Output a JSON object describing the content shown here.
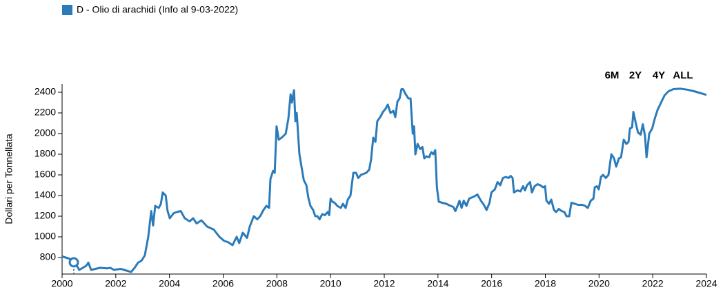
{
  "chart_data": {
    "type": "line",
    "legend": "D - Olio di arachidi (Info al 9-03-2022)",
    "y_label": "Dollari per Tonnellata",
    "buttons": [
      "6M",
      "2Y",
      "4Y",
      "ALL"
    ],
    "xlim": [
      2000,
      2024
    ],
    "xticks": [
      2000,
      2002,
      2004,
      2006,
      2008,
      2010,
      2012,
      2014,
      2016,
      2018,
      2020,
      2022,
      2024
    ],
    "ylim": [
      640,
      2480
    ],
    "yticks": [
      800,
      1000,
      1200,
      1400,
      1600,
      1800,
      2000,
      2200,
      2400
    ],
    "grid": false,
    "series": [
      {
        "name": "D - Olio di arachidi (Info al 9-03-2022)",
        "color": "#2b7bba",
        "x": [
          2000,
          2000.26,
          2000.46,
          2000.64,
          2000.9,
          2000.98,
          2001.08,
          2001.41,
          2001.67,
          2001.8,
          2001.93,
          2002.18,
          2002.44,
          2002.57,
          2002.7,
          2002.83,
          2002.96,
          2003.08,
          2003.21,
          2003.32,
          2003.39,
          2003.47,
          2003.6,
          2003.68,
          2003.75,
          2003.86,
          2003.93,
          2004.01,
          2004.16,
          2004.27,
          2004.42,
          2004.57,
          2004.75,
          2004.88,
          2005.01,
          2005.19,
          2005.4,
          2005.65,
          2005.86,
          2006.04,
          2006.17,
          2006.35,
          2006.5,
          2006.6,
          2006.73,
          2006.89,
          2006.99,
          2007.14,
          2007.27,
          2007.38,
          2007.5,
          2007.61,
          2007.71,
          2007.76,
          2007.86,
          2007.92,
          2007.99,
          2008.07,
          2008.22,
          2008.33,
          2008.43,
          2008.51,
          2008.56,
          2008.64,
          2008.69,
          2008.74,
          2008.84,
          2009,
          2009.1,
          2009.17,
          2009.25,
          2009.35,
          2009.43,
          2009.51,
          2009.59,
          2009.69,
          2009.79,
          2009.89,
          2009.95,
          2010,
          2010.07,
          2010.15,
          2010.25,
          2010.38,
          2010.46,
          2010.56,
          2010.64,
          2010.74,
          2010.85,
          2010.95,
          2011.03,
          2011.13,
          2011.23,
          2011.33,
          2011.44,
          2011.51,
          2011.59,
          2011.67,
          2011.74,
          2011.85,
          2011.95,
          2012.05,
          2012.13,
          2012.23,
          2012.34,
          2012.41,
          2012.49,
          2012.57,
          2012.64,
          2012.7,
          2012.8,
          2012.9,
          2012.98,
          2013.06,
          2013.11,
          2013.16,
          2013.24,
          2013.34,
          2013.42,
          2013.49,
          2013.57,
          2013.67,
          2013.75,
          2013.83,
          2013.9,
          2013.96,
          2014.03,
          2014.16,
          2014.31,
          2014.47,
          2014.57,
          2014.65,
          2014.73,
          2014.8,
          2014.88,
          2014.96,
          2015.06,
          2015.16,
          2015.34,
          2015.47,
          2015.6,
          2015.71,
          2015.81,
          2015.92,
          2015.99,
          2016.12,
          2016.22,
          2016.32,
          2016.42,
          2016.53,
          2016.63,
          2016.71,
          2016.78,
          2016.83,
          2016.96,
          2017.07,
          2017.17,
          2017.24,
          2017.32,
          2017.43,
          2017.5,
          2017.6,
          2017.71,
          2017.81,
          2017.91,
          2017.99,
          2018.04,
          2018.14,
          2018.22,
          2018.32,
          2018.4,
          2018.5,
          2018.61,
          2018.71,
          2018.79,
          2018.89,
          2018.97,
          2019.1,
          2019.22,
          2019.38,
          2019.48,
          2019.58,
          2019.69,
          2019.79,
          2019.84,
          2019.92,
          2019.99,
          2020.07,
          2020.15,
          2020.25,
          2020.35,
          2020.46,
          2020.56,
          2020.64,
          2020.74,
          2020.82,
          2020.92,
          2021.02,
          2021.1,
          2021.15,
          2021.23,
          2021.28,
          2021.37,
          2021.45,
          2021.55,
          2021.63,
          2021.71,
          2021.77,
          2021.87,
          2021.98,
          2022.08,
          2022.18,
          2022.31,
          2022.44,
          2022.59,
          2022.77,
          2023.03,
          2023.29,
          2023.54,
          2023.8,
          2024
        ],
        "values": [
          810,
          790,
          760,
          680,
          720,
          750,
          680,
          700,
          695,
          700,
          680,
          690,
          670,
          660,
          700,
          750,
          770,
          820,
          1000,
          1250,
          1110,
          1300,
          1280,
          1320,
          1430,
          1400,
          1250,
          1180,
          1230,
          1240,
          1250,
          1180,
          1150,
          1180,
          1130,
          1160,
          1100,
          1070,
          1000,
          960,
          950,
          920,
          1000,
          940,
          1040,
          990,
          1100,
          1200,
          1170,
          1200,
          1260,
          1300,
          1280,
          1560,
          1640,
          1620,
          2070,
          1940,
          1970,
          2000,
          2150,
          2380,
          2300,
          2420,
          2120,
          2200,
          1800,
          1550,
          1500,
          1380,
          1300,
          1260,
          1200,
          1200,
          1170,
          1220,
          1210,
          1240,
          1210,
          1370,
          1340,
          1330,
          1300,
          1280,
          1320,
          1280,
          1360,
          1400,
          1620,
          1620,
          1570,
          1600,
          1610,
          1620,
          1650,
          1750,
          1960,
          1920,
          2120,
          2160,
          2210,
          2240,
          2280,
          2200,
          2220,
          2160,
          2310,
          2340,
          2430,
          2430,
          2380,
          2340,
          2340,
          2000,
          2070,
          1800,
          1900,
          1850,
          1870,
          1760,
          1780,
          1770,
          1820,
          1800,
          1840,
          1480,
          1340,
          1330,
          1320,
          1300,
          1290,
          1250,
          1300,
          1350,
          1280,
          1350,
          1300,
          1370,
          1390,
          1410,
          1350,
          1310,
          1260,
          1330,
          1430,
          1460,
          1530,
          1500,
          1570,
          1580,
          1570,
          1590,
          1570,
          1430,
          1450,
          1440,
          1490,
          1450,
          1500,
          1530,
          1430,
          1490,
          1510,
          1500,
          1480,
          1490,
          1350,
          1320,
          1360,
          1260,
          1240,
          1270,
          1250,
          1240,
          1200,
          1200,
          1330,
          1320,
          1310,
          1310,
          1300,
          1280,
          1350,
          1370,
          1480,
          1490,
          1460,
          1580,
          1600,
          1570,
          1600,
          1800,
          1760,
          1680,
          1760,
          1770,
          1940,
          1900,
          1920,
          2050,
          2060,
          2210,
          2100,
          2010,
          1990,
          2090,
          1980,
          1770,
          2000,
          2050,
          2150,
          2230,
          2300,
          2370,
          2410,
          2430,
          2435,
          2425,
          2410,
          2390,
          2375
        ]
      }
    ]
  }
}
